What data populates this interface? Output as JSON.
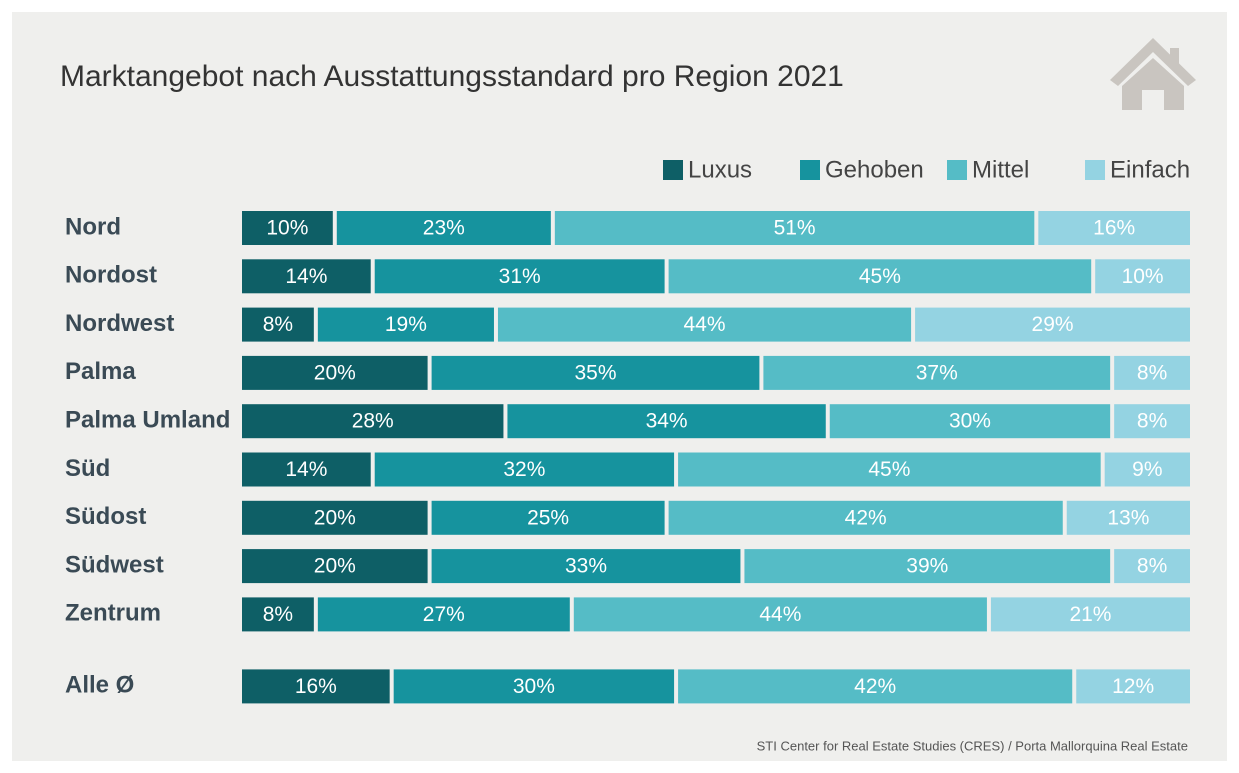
{
  "chart_data": {
    "type": "stacked-bar-horizontal",
    "title": "Marktangebot nach Ausstattungsstandard pro Region 2021",
    "source": "STI Center for Real Estate Studies (CRES) / Porta Mallorquina Real Estate",
    "categories": [
      "Nord",
      "Nordost",
      "Nordwest",
      "Palma",
      "Palma Umland",
      "Süd",
      "Südost",
      "Südwest",
      "Zentrum",
      "Alle Ø"
    ],
    "xlim": [
      0,
      100
    ],
    "legend": "top-right",
    "series": [
      {
        "name": "Luxus",
        "color": "#0e5f66",
        "values": [
          10,
          14,
          8,
          20,
          28,
          14,
          20,
          20,
          8,
          16
        ],
        "value_labels": [
          "10%",
          "14%",
          "8%",
          "20%",
          "28%",
          "14%",
          "20%",
          "20%",
          "8%",
          "16%"
        ]
      },
      {
        "name": "Gehoben",
        "color": "#16939e",
        "values": [
          23,
          31,
          19,
          35,
          34,
          32,
          25,
          33,
          27,
          30
        ],
        "value_labels": [
          "23%",
          "31%",
          "19%",
          "35%",
          "34%",
          "32%",
          "25%",
          "33%",
          "27%",
          "30%"
        ]
      },
      {
        "name": "Mittel",
        "color": "#55bcc6",
        "values": [
          51,
          45,
          44,
          37,
          30,
          45,
          42,
          39,
          44,
          42
        ],
        "value_labels": [
          "51%",
          "45%",
          "44%",
          "37%",
          "30%",
          "45%",
          "42%",
          "39%",
          "44%",
          "42%"
        ]
      },
      {
        "name": "Einfach",
        "color": "#94d3e2",
        "values": [
          16,
          10,
          29,
          8,
          8,
          9,
          13,
          8,
          21,
          12
        ],
        "value_labels": [
          "16%",
          "10%",
          "29%",
          "8%",
          "8%",
          "9%",
          "13%",
          "8%",
          "21%",
          "12%"
        ]
      }
    ]
  }
}
